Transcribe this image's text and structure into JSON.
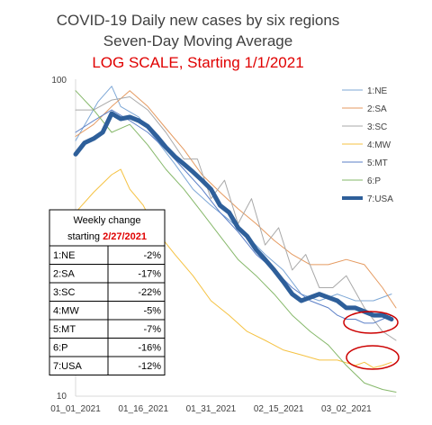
{
  "chart_data": {
    "type": "line",
    "title_lines": [
      "COVID-19 Daily new cases by six regions",
      "Seven-Day Moving Average"
    ],
    "subtitle": "LOG SCALE, Starting 1/1/2021",
    "y_scale": "log",
    "ylim": [
      10,
      100
    ],
    "y_ticks": [
      "100",
      "10"
    ],
    "x_tick_labels": [
      "01_01_2021",
      "01_16_2021",
      "01_31_2021",
      "02_15_2021",
      "03_02_2021"
    ],
    "x_tick_days": [
      0,
      15,
      30,
      45,
      60
    ],
    "x_range_days": [
      0,
      71
    ],
    "grid": false,
    "legend_position": "right",
    "series": [
      {
        "name": "1:NE",
        "color": "#7da7d6",
        "width": 1,
        "x": [
          0,
          5,
          8,
          10,
          14,
          18,
          22,
          26,
          30,
          34,
          38,
          42,
          46,
          50,
          54,
          58,
          62,
          66,
          70
        ],
        "y": [
          64,
          85,
          95,
          82,
          76,
          64,
          54,
          45,
          40,
          36,
          32,
          28,
          25,
          21,
          20,
          21,
          20,
          20,
          21
        ]
      },
      {
        "name": "2:SA",
        "color": "#e59a60",
        "width": 1,
        "x": [
          0,
          4,
          8,
          12,
          16,
          20,
          24,
          28,
          32,
          36,
          40,
          44,
          48,
          52,
          56,
          60,
          64,
          68,
          71
        ],
        "y": [
          66,
          72,
          82,
          92,
          82,
          70,
          60,
          50,
          44,
          39,
          35,
          31,
          28,
          26,
          26,
          27,
          26,
          22,
          19
        ]
      },
      {
        "name": "3:SC",
        "color": "#a9a9a9",
        "width": 1,
        "x": [
          0,
          4,
          8,
          12,
          16,
          20,
          24,
          27,
          30,
          33,
          36,
          39,
          42,
          45,
          48,
          51,
          54,
          57,
          60,
          64,
          68,
          71
        ],
        "y": [
          80,
          80,
          86,
          88,
          80,
          68,
          56,
          56,
          42,
          48,
          35,
          42,
          30,
          34,
          25,
          28,
          22,
          22,
          24,
          19,
          16,
          15
        ]
      },
      {
        "name": "4:MW",
        "color": "#f5c242",
        "width": 1,
        "x": [
          0,
          4,
          8,
          10,
          12,
          15,
          18,
          22,
          26,
          30,
          34,
          38,
          42,
          46,
          50,
          54,
          58,
          62,
          64,
          66,
          68,
          70
        ],
        "y": [
          38,
          44,
          50,
          52,
          45,
          40,
          33,
          28,
          24,
          20,
          18,
          16,
          15,
          14,
          13.5,
          13,
          13,
          12.5,
          12.8,
          12.3,
          12.5,
          12.8
        ]
      },
      {
        "name": "5:MT",
        "color": "#5b7fc7",
        "width": 1,
        "x": [
          0,
          4,
          8,
          12,
          16,
          20,
          24,
          28,
          32,
          36,
          40,
          44,
          48,
          52,
          56,
          58,
          60,
          62,
          64,
          66,
          68,
          70
        ],
        "y": [
          68,
          74,
          80,
          74,
          68,
          60,
          52,
          45,
          38,
          33,
          28,
          25,
          22,
          20,
          19,
          18,
          17.5,
          17.5,
          17,
          17,
          17.5,
          18
        ]
      },
      {
        "name": "6:P",
        "color": "#86b86a",
        "width": 1,
        "x": [
          0,
          4,
          8,
          12,
          16,
          20,
          24,
          28,
          32,
          36,
          40,
          44,
          48,
          52,
          56,
          60,
          64,
          68,
          71
        ],
        "y": [
          92,
          80,
          68,
          72,
          62,
          52,
          45,
          38,
          32,
          27,
          24,
          21,
          18,
          16,
          14.5,
          12.5,
          11,
          10.5,
          10.3
        ]
      },
      {
        "name": "7:USA",
        "color": "#2e5f9a",
        "width": 5,
        "x": [
          0,
          2,
          4,
          6,
          8,
          10,
          12,
          14,
          16,
          18,
          20,
          22,
          24,
          26,
          28,
          30,
          32,
          34,
          36,
          38,
          40,
          42,
          44,
          46,
          48,
          50,
          52,
          54,
          56,
          58,
          60,
          62,
          64,
          66,
          68,
          70
        ],
        "y": [
          58,
          63,
          65,
          68,
          78,
          75,
          76,
          74,
          71,
          66,
          61,
          57,
          54,
          51,
          48,
          45,
          40,
          38,
          34,
          32,
          29,
          27,
          25,
          23,
          21,
          20,
          20.5,
          21,
          20.5,
          20,
          19,
          19,
          18.5,
          18,
          18,
          17.5
        ]
      }
    ]
  },
  "table": {
    "header_line1": "Weekly change",
    "header_line2_prefix": "starting ",
    "header_line2_date": "2/27/2021",
    "rows": [
      {
        "region": "1:NE",
        "change": "-2%"
      },
      {
        "region": "2:SA",
        "change": "-17%"
      },
      {
        "region": "3:SC",
        "change": "-22%"
      },
      {
        "region": "4:MW",
        "change": "-5%"
      },
      {
        "region": "5:MT",
        "change": "-7%"
      },
      {
        "region": "6:P",
        "change": "-16%"
      },
      {
        "region": "7:USA",
        "change": "-12%"
      }
    ]
  },
  "highlight_color": "#cc0000"
}
